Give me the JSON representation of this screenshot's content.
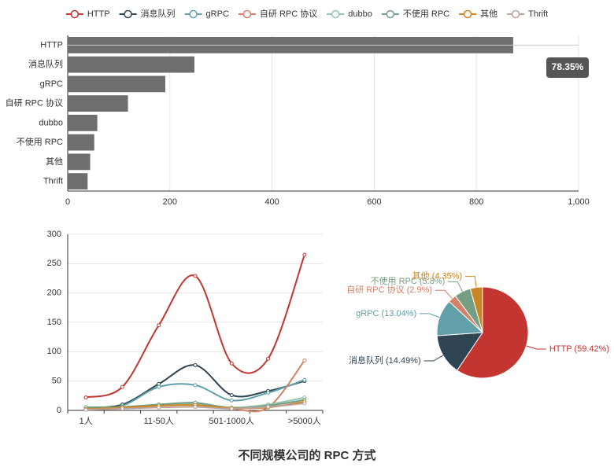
{
  "caption": "不同规模公司的 RPC 方式",
  "chart_data": [
    {
      "type": "hbar",
      "categories": [
        "HTTP",
        "消息队列",
        "gRPC",
        "自研 RPC 协议",
        "dubbo",
        "不使用 RPC",
        "其他",
        "Thrift"
      ],
      "values": [
        872,
        248,
        191,
        118,
        58,
        52,
        44,
        39
      ],
      "color": "#6e6e70",
      "xlim": [
        0,
        1000
      ],
      "xticks": [
        0,
        200,
        400,
        600,
        800,
        {
          "value": 1000,
          "label": "1,000"
        }
      ],
      "grid": true,
      "annotation": "78.35%"
    },
    {
      "type": "line",
      "categories": [
        "1人",
        null,
        "11-50人",
        null,
        "501-1000人",
        null,
        ">5000人"
      ],
      "series": [
        {
          "name": "HTTP",
          "color": "#c23531",
          "values": [
            22,
            40,
            145,
            229,
            80,
            88,
            265
          ]
        },
        {
          "name": "消息队列",
          "color": "#2f4554",
          "values": [
            5,
            10,
            45,
            77,
            26,
            33,
            50
          ]
        },
        {
          "name": "gRPC",
          "color": "#61a0a8",
          "values": [
            3,
            8,
            40,
            43,
            17,
            30,
            52
          ]
        },
        {
          "name": "自研 RPC 协议",
          "color": "#d48265",
          "values": [
            2,
            4,
            8,
            10,
            3,
            5,
            85
          ]
        },
        {
          "name": "dubbo",
          "color": "#91c7ae",
          "values": [
            3,
            5,
            10,
            12,
            5,
            10,
            22
          ]
        },
        {
          "name": "不使用 RPC",
          "color": "#749f83",
          "values": [
            5,
            6,
            10,
            13,
            4,
            8,
            18
          ]
        },
        {
          "name": "其他",
          "color": "#ca8622",
          "values": [
            2,
            5,
            8,
            9,
            4,
            5,
            15
          ]
        },
        {
          "name": "Thrift",
          "color": "#bda29a",
          "values": [
            1,
            3,
            5,
            6,
            3,
            6,
            12
          ]
        }
      ],
      "ylim": [
        0,
        300
      ],
      "yticks": [
        0,
        50,
        100,
        150,
        200,
        250,
        300
      ],
      "grid": true,
      "smooth": true,
      "legend": "top"
    },
    {
      "type": "pie",
      "categories": [
        "HTTP",
        "消息队列",
        "gRPC",
        "自研 RPC 协议",
        "不使用 RPC",
        "其他"
      ],
      "values": [
        59.42,
        14.49,
        13.04,
        2.9,
        5.8,
        4.35
      ],
      "value_labels": [
        "HTTP (59.42%)",
        "消息队列 (14.49%)",
        "gRPC (13.04%)",
        "自研 RPC 协议 (2.9%)",
        "不使用 RPC (5.8%)",
        "其他 (4.35%)"
      ],
      "colors": [
        "#c23531",
        "#2f4554",
        "#61a0a8",
        "#d48265",
        "#749f83",
        "#ca8622"
      ]
    }
  ]
}
